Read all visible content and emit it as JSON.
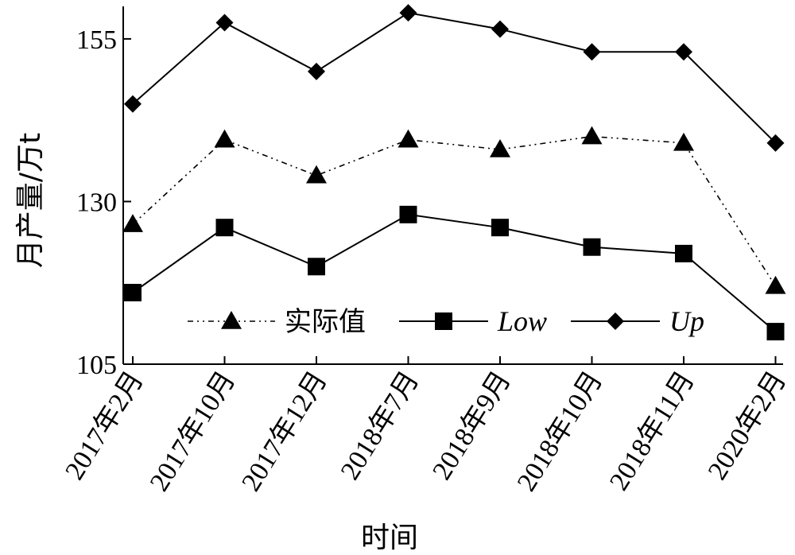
{
  "chart_data": {
    "type": "line",
    "title": "",
    "xlabel": "时间",
    "ylabel": "月产量/万t",
    "categories": [
      "2017年2月",
      "2017年10月",
      "2017年12月",
      "2018年7月",
      "2018年9月",
      "2018年10月",
      "2018年11月",
      "2020年2月"
    ],
    "ylim": [
      105,
      160
    ],
    "yticks": [
      105,
      130,
      155
    ],
    "grid": false,
    "legend_position": "bottom-center",
    "series": [
      {
        "name": "实际值",
        "marker": "triangle",
        "line_style": "dash-dot-dot",
        "values": [
          126.5,
          139.5,
          134,
          139.5,
          138,
          140,
          139,
          117
        ]
      },
      {
        "name": "Low",
        "marker": "square",
        "line_style": "solid",
        "values": [
          116,
          126,
          120,
          128,
          126,
          123,
          122,
          110
        ]
      },
      {
        "name": "Up",
        "marker": "diamond",
        "line_style": "solid",
        "values": [
          145,
          157.5,
          150,
          159,
          156.5,
          153,
          153,
          139
        ]
      }
    ]
  }
}
